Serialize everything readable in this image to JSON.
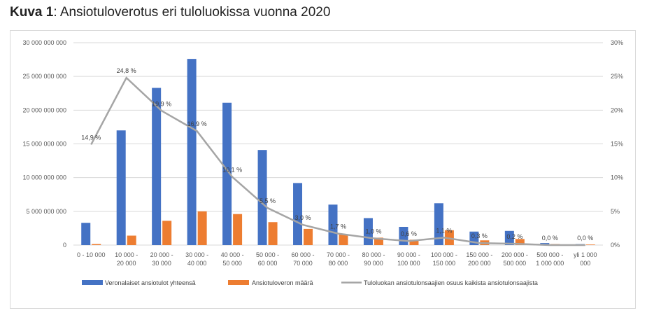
{
  "title": {
    "bold": "Kuva 1",
    "rest": ": Ansiotuloverotus eri tuloluokissa vuonna 2020"
  },
  "colors": {
    "series1": "#4472c4",
    "series2": "#ed7d31",
    "series3": "#a5a5a5",
    "grid": "#d9d9d9"
  },
  "chart_data": {
    "type": "bar",
    "title": "Ansiotuloverotus eri tuloluokissa vuonna 2020",
    "categories": [
      [
        "0 - 10 000"
      ],
      [
        "10 000 -",
        "20 000"
      ],
      [
        "20 000 -",
        "30 000"
      ],
      [
        "30 000 -",
        "40 000"
      ],
      [
        "40 000 -",
        "50 000"
      ],
      [
        "50 000 -",
        "60 000"
      ],
      [
        "60 000 -",
        "70 000"
      ],
      [
        "70 000 -",
        "80 000"
      ],
      [
        "80 000 -",
        "90 000"
      ],
      [
        "90 000 -",
        "100 000"
      ],
      [
        "100 000 -",
        "150 000"
      ],
      [
        "150 000 -",
        "200 000"
      ],
      [
        "200 000 -",
        "500 000"
      ],
      [
        "500 000 -",
        "1 000 000"
      ],
      [
        "yli 1 000",
        "000"
      ]
    ],
    "y_left": {
      "ylim": [
        0,
        30000000000
      ],
      "ticks": [
        "0",
        "5 000 000 000",
        "10 000 000 000",
        "15 000 000 000",
        "20 000 000 000",
        "25 000 000 000",
        "30 000 000 000"
      ]
    },
    "y_right": {
      "ylim": [
        0,
        30
      ],
      "ticks": [
        "0%",
        "5%",
        "10%",
        "15%",
        "20%",
        "25%",
        "30%"
      ]
    },
    "series": [
      {
        "name": "Veronalaiset ansiotulot yhteensä",
        "type": "bar",
        "axis": "left",
        "values": [
          3300000000,
          17000000000,
          23300000000,
          27600000000,
          21100000000,
          14100000000,
          9200000000,
          6000000000,
          4000000000,
          2700000000,
          6200000000,
          2000000000,
          2100000000,
          300000000,
          150000000
        ]
      },
      {
        "name": "Ansiotuloveron määrä",
        "type": "bar",
        "axis": "left",
        "values": [
          150000000,
          1400000000,
          3600000000,
          5000000000,
          4600000000,
          3400000000,
          2400000000,
          1600000000,
          1100000000,
          800000000,
          2200000000,
          700000000,
          900000000,
          150000000,
          80000000
        ]
      },
      {
        "name": "Tuloluokan ansiotulonsaajien osuus kaikista ansiotulonsaajista",
        "type": "line",
        "axis": "right",
        "values": [
          14.9,
          24.8,
          19.9,
          16.9,
          10.1,
          5.5,
          3.0,
          1.7,
          1.0,
          0.6,
          1.1,
          0.3,
          0.2,
          0.0,
          0.0
        ],
        "labels": [
          "14,9 %",
          "24,8 %",
          "19,9 %",
          "16,9 %",
          "10,1 %",
          "5,5 %",
          "3,0 %",
          "1,7 %",
          "1,0 %",
          "0,6 %",
          "1,1 %",
          "0,3 %",
          "0,2 %",
          "0,0 %",
          "0,0 %"
        ]
      }
    ],
    "legend_position": "bottom",
    "grid": true
  }
}
